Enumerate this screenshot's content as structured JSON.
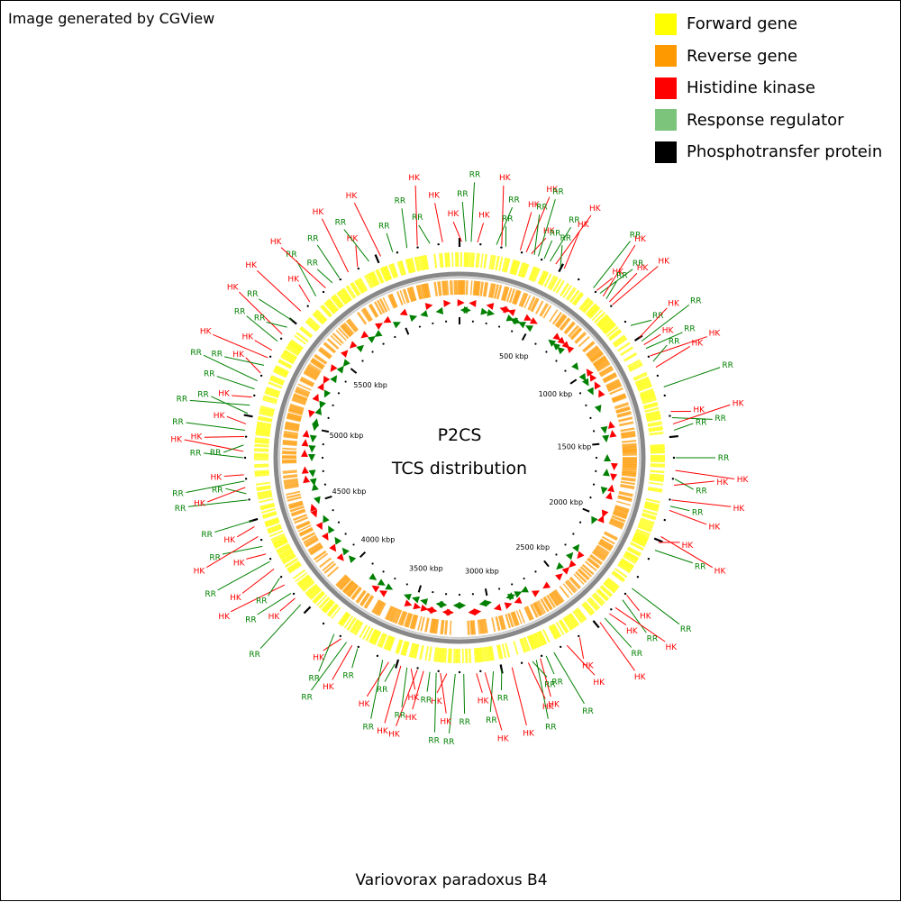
{
  "header": {
    "note": "Image generated by CGView"
  },
  "legend": [
    {
      "label": "Forward gene",
      "color": "#ffff00"
    },
    {
      "label": "Reverse gene",
      "color": "#ff9900"
    },
    {
      "label": "Histidine kinase",
      "color": "#ff0000"
    },
    {
      "label": "Response regulator",
      "color": "#7cc47c"
    },
    {
      "label": "Phosphotransfer protein",
      "color": "#000000"
    }
  ],
  "map": {
    "center_title": "P2CS",
    "center_subtitle": "TCS distribution",
    "genome_length_kbp": 6400,
    "tick_labels": [
      "500 kbp",
      "1000 kbp",
      "1500 kbp",
      "2000 kbp",
      "2500 kbp",
      "3000 kbp",
      "3500 kbp",
      "4000 kbp",
      "4500 kbp",
      "5000 kbp",
      "5500 kbp"
    ],
    "tick_positions_kbp": [
      500,
      1000,
      1500,
      2000,
      2500,
      3000,
      3500,
      4000,
      4500,
      5000,
      5500
    ],
    "features": [
      {
        "label": "HK",
        "pos_kbp": 10,
        "type": "hk"
      },
      {
        "label": "RR",
        "pos_kbp": 30,
        "type": "rr"
      },
      {
        "label": "RR",
        "pos_kbp": 55,
        "type": "rr"
      },
      {
        "label": "HK",
        "pos_kbp": 85,
        "type": "hk"
      },
      {
        "label": "RR",
        "pos_kbp": 175,
        "type": "rr"
      },
      {
        "label": "HK",
        "pos_kbp": 200,
        "type": "hk"
      },
      {
        "label": "RR",
        "pos_kbp": 220,
        "type": "rr"
      },
      {
        "label": "HK",
        "pos_kbp": 290,
        "type": "hk"
      },
      {
        "label": "HK",
        "pos_kbp": 320,
        "type": "hk"
      },
      {
        "label": "HK",
        "pos_kbp": 345,
        "type": "hk"
      },
      {
        "label": "RR",
        "pos_kbp": 360,
        "type": "rr"
      },
      {
        "label": "RR",
        "pos_kbp": 380,
        "type": "rr"
      },
      {
        "label": "RR",
        "pos_kbp": 410,
        "type": "rr"
      },
      {
        "label": "RR",
        "pos_kbp": 440,
        "type": "rr"
      },
      {
        "label": "HK",
        "pos_kbp": 470,
        "type": "hk"
      },
      {
        "label": "RR",
        "pos_kbp": 495,
        "type": "rr"
      },
      {
        "label": "HK",
        "pos_kbp": 515,
        "type": "hk"
      },
      {
        "label": "RR",
        "pos_kbp": 680,
        "type": "rr"
      },
      {
        "label": "HK",
        "pos_kbp": 700,
        "type": "hk"
      },
      {
        "label": "RR",
        "pos_kbp": 720,
        "type": "rr"
      },
      {
        "label": "HK",
        "pos_kbp": 740,
        "type": "hk"
      },
      {
        "label": "RR",
        "pos_kbp": 760,
        "type": "rr"
      },
      {
        "label": "HK",
        "pos_kbp": 780,
        "type": "hk"
      },
      {
        "label": "HK",
        "pos_kbp": 800,
        "type": "hk"
      },
      {
        "label": "RR",
        "pos_kbp": 930,
        "type": "rr"
      },
      {
        "label": "HK",
        "pos_kbp": 1000,
        "type": "hk"
      },
      {
        "label": "RR",
        "pos_kbp": 1020,
        "type": "rr"
      },
      {
        "label": "HK",
        "pos_kbp": 1040,
        "type": "hk"
      },
      {
        "label": "RR",
        "pos_kbp": 1060,
        "type": "rr"
      },
      {
        "label": "HK",
        "pos_kbp": 1100,
        "type": "hk"
      },
      {
        "label": "RR",
        "pos_kbp": 1130,
        "type": "rr"
      },
      {
        "label": "HK",
        "pos_kbp": 1160,
        "type": "hk"
      },
      {
        "label": "RR",
        "pos_kbp": 1260,
        "type": "rr"
      },
      {
        "label": "HK",
        "pos_kbp": 1380,
        "type": "hk"
      },
      {
        "label": "RR",
        "pos_kbp": 1410,
        "type": "rr"
      },
      {
        "label": "HK",
        "pos_kbp": 1440,
        "type": "hk"
      },
      {
        "label": "RR",
        "pos_kbp": 1470,
        "type": "rr"
      },
      {
        "label": "RR",
        "pos_kbp": 1600,
        "type": "rr"
      },
      {
        "label": "HK",
        "pos_kbp": 1660,
        "type": "hk"
      },
      {
        "label": "RR",
        "pos_kbp": 1700,
        "type": "rr"
      },
      {
        "label": "HK",
        "pos_kbp": 1730,
        "type": "hk"
      },
      {
        "label": "HK",
        "pos_kbp": 1800,
        "type": "hk"
      },
      {
        "label": "RR",
        "pos_kbp": 1830,
        "type": "rr"
      },
      {
        "label": "HK",
        "pos_kbp": 1850,
        "type": "hk"
      },
      {
        "label": "HK",
        "pos_kbp": 1980,
        "type": "hk"
      },
      {
        "label": "HK",
        "pos_kbp": 2010,
        "type": "hk"
      },
      {
        "label": "RR",
        "pos_kbp": 2050,
        "type": "rr"
      },
      {
        "label": "RR",
        "pos_kbp": 2260,
        "type": "rr"
      },
      {
        "label": "HK",
        "pos_kbp": 2300,
        "type": "hk"
      },
      {
        "label": "RR",
        "pos_kbp": 2330,
        "type": "rr"
      },
      {
        "label": "HK",
        "pos_kbp": 2380,
        "type": "hk"
      },
      {
        "label": "HK",
        "pos_kbp": 2420,
        "type": "hk"
      },
      {
        "label": "RR",
        "pos_kbp": 2450,
        "type": "rr"
      },
      {
        "label": "HK",
        "pos_kbp": 2480,
        "type": "hk"
      },
      {
        "label": "HK",
        "pos_kbp": 2600,
        "type": "hk"
      },
      {
        "label": "HK",
        "pos_kbp": 2670,
        "type": "hk"
      },
      {
        "label": "RR",
        "pos_kbp": 2740,
        "type": "rr"
      },
      {
        "label": "RR",
        "pos_kbp": 2780,
        "type": "rr"
      },
      {
        "label": "HK",
        "pos_kbp": 2810,
        "type": "hk"
      },
      {
        "label": "RR",
        "pos_kbp": 2830,
        "type": "rr"
      },
      {
        "label": "RR",
        "pos_kbp": 2850,
        "type": "rr"
      },
      {
        "label": "HK",
        "pos_kbp": 2870,
        "type": "hk"
      },
      {
        "label": "HK",
        "pos_kbp": 2950,
        "type": "hk"
      },
      {
        "label": "RR",
        "pos_kbp": 3000,
        "type": "rr"
      },
      {
        "label": "RR",
        "pos_kbp": 3040,
        "type": "rr"
      },
      {
        "label": "HK",
        "pos_kbp": 3080,
        "type": "hk"
      },
      {
        "label": "HK",
        "pos_kbp": 3120,
        "type": "hk"
      },
      {
        "label": "RR",
        "pos_kbp": 3180,
        "type": "rr"
      },
      {
        "label": "RR",
        "pos_kbp": 3220,
        "type": "rr"
      },
      {
        "label": "HK",
        "pos_kbp": 3260,
        "type": "hk"
      },
      {
        "label": "HK",
        "pos_kbp": 3290,
        "type": "hk"
      },
      {
        "label": "RR",
        "pos_kbp": 3310,
        "type": "rr"
      },
      {
        "label": "RR",
        "pos_kbp": 3340,
        "type": "rr"
      },
      {
        "label": "HK",
        "pos_kbp": 3370,
        "type": "hk"
      },
      {
        "label": "HK",
        "pos_kbp": 3400,
        "type": "hk"
      },
      {
        "label": "HK",
        "pos_kbp": 3430,
        "type": "hk"
      },
      {
        "label": "RR",
        "pos_kbp": 3450,
        "type": "rr"
      },
      {
        "label": "HK",
        "pos_kbp": 3480,
        "type": "hk"
      },
      {
        "label": "RR",
        "pos_kbp": 3510,
        "type": "rr"
      },
      {
        "label": "HK",
        "pos_kbp": 3540,
        "type": "hk"
      },
      {
        "label": "RR",
        "pos_kbp": 3570,
        "type": "rr"
      },
      {
        "label": "RR",
        "pos_kbp": 3700,
        "type": "rr"
      },
      {
        "label": "HK",
        "pos_kbp": 3730,
        "type": "hk"
      },
      {
        "label": "RR",
        "pos_kbp": 3760,
        "type": "rr"
      },
      {
        "label": "HK",
        "pos_kbp": 3790,
        "type": "hk"
      },
      {
        "label": "RR",
        "pos_kbp": 3830,
        "type": "rr"
      },
      {
        "label": "RR",
        "pos_kbp": 4040,
        "type": "rr"
      },
      {
        "label": "HK",
        "pos_kbp": 4080,
        "type": "hk"
      },
      {
        "label": "RR",
        "pos_kbp": 4110,
        "type": "rr"
      },
      {
        "label": "HK",
        "pos_kbp": 4160,
        "type": "hk"
      },
      {
        "label": "RR",
        "pos_kbp": 4200,
        "type": "rr"
      },
      {
        "label": "HK",
        "pos_kbp": 4250,
        "type": "hk"
      },
      {
        "label": "RR",
        "pos_kbp": 4290,
        "type": "rr"
      },
      {
        "label": "HK",
        "pos_kbp": 4330,
        "type": "hk"
      },
      {
        "label": "RR",
        "pos_kbp": 4370,
        "type": "rr"
      },
      {
        "label": "HK",
        "pos_kbp": 4420,
        "type": "hk"
      },
      {
        "label": "HK",
        "pos_kbp": 4470,
        "type": "hk"
      },
      {
        "label": "RR",
        "pos_kbp": 4500,
        "type": "rr"
      },
      {
        "label": "RR",
        "pos_kbp": 4600,
        "type": "rr"
      },
      {
        "label": "RR",
        "pos_kbp": 4630,
        "type": "rr"
      },
      {
        "label": "HK",
        "pos_kbp": 4660,
        "type": "hk"
      },
      {
        "label": "RR",
        "pos_kbp": 4690,
        "type": "rr"
      },
      {
        "label": "HK",
        "pos_kbp": 4720,
        "type": "hk"
      },
      {
        "label": "RR",
        "pos_kbp": 4800,
        "type": "rr"
      },
      {
        "label": "HK",
        "pos_kbp": 4830,
        "type": "hk"
      },
      {
        "label": "RR",
        "pos_kbp": 4860,
        "type": "rr"
      },
      {
        "label": "HK",
        "pos_kbp": 4900,
        "type": "hk"
      },
      {
        "label": "RR",
        "pos_kbp": 4930,
        "type": "rr"
      },
      {
        "label": "HK",
        "pos_kbp": 4960,
        "type": "hk"
      },
      {
        "label": "RR",
        "pos_kbp": 5010,
        "type": "rr"
      },
      {
        "label": "RR",
        "pos_kbp": 5050,
        "type": "rr"
      },
      {
        "label": "HK",
        "pos_kbp": 5090,
        "type": "hk"
      },
      {
        "label": "RR",
        "pos_kbp": 5130,
        "type": "rr"
      },
      {
        "label": "RR",
        "pos_kbp": 5170,
        "type": "rr"
      },
      {
        "label": "HK",
        "pos_kbp": 5210,
        "type": "hk"
      },
      {
        "label": "RR",
        "pos_kbp": 5250,
        "type": "rr"
      },
      {
        "label": "HK",
        "pos_kbp": 5290,
        "type": "hk"
      },
      {
        "label": "HK",
        "pos_kbp": 5330,
        "type": "hk"
      },
      {
        "label": "RR",
        "pos_kbp": 5380,
        "type": "rr"
      },
      {
        "label": "HK",
        "pos_kbp": 5420,
        "type": "hk"
      },
      {
        "label": "RR",
        "pos_kbp": 5460,
        "type": "rr"
      },
      {
        "label": "RR",
        "pos_kbp": 5500,
        "type": "rr"
      },
      {
        "label": "HK",
        "pos_kbp": 5560,
        "type": "hk"
      },
      {
        "label": "HK",
        "pos_kbp": 5620,
        "type": "hk"
      },
      {
        "label": "RR",
        "pos_kbp": 5660,
        "type": "rr"
      },
      {
        "label": "HK",
        "pos_kbp": 5720,
        "type": "hk"
      },
      {
        "label": "RR",
        "pos_kbp": 5760,
        "type": "rr"
      },
      {
        "label": "RR",
        "pos_kbp": 5800,
        "type": "rr"
      },
      {
        "label": "HK",
        "pos_kbp": 5850,
        "type": "hk"
      },
      {
        "label": "HK",
        "pos_kbp": 5900,
        "type": "hk"
      },
      {
        "label": "RR",
        "pos_kbp": 5960,
        "type": "rr"
      },
      {
        "label": "HK",
        "pos_kbp": 6020,
        "type": "hk"
      },
      {
        "label": "RR",
        "pos_kbp": 6080,
        "type": "rr"
      },
      {
        "label": "RR",
        "pos_kbp": 6150,
        "type": "rr"
      },
      {
        "label": "HK",
        "pos_kbp": 6200,
        "type": "hk"
      },
      {
        "label": "RR",
        "pos_kbp": 6260,
        "type": "rr"
      },
      {
        "label": "HK",
        "pos_kbp": 6320,
        "type": "hk"
      }
    ]
  },
  "colors": {
    "hk": "#ff0000",
    "rr": "#008000",
    "tick": "#000000",
    "backbone": "#808080"
  },
  "footer": {
    "caption": "Variovorax paradoxus B4"
  }
}
